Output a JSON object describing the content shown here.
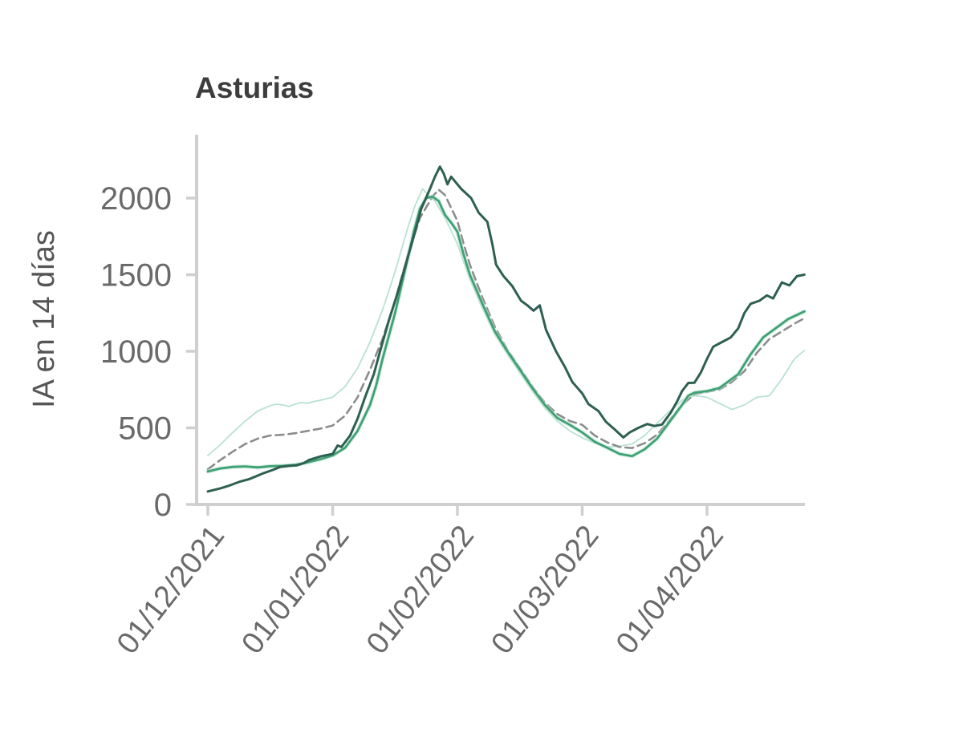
{
  "page": {
    "background": "#ffffff"
  },
  "chart": {
    "title": "Asturias",
    "title_color": "#3d3d3d",
    "axis_color": "#cfcfcf",
    "tick_label_color": "#6a6a6a",
    "axis_label_color": "#555555",
    "y_axis": {
      "label": "IA en 14 días",
      "ticks": [
        0,
        500,
        1000,
        1500,
        2000
      ]
    },
    "x_axis": {
      "ticks": [
        "01/12/2021",
        "01/01/2022",
        "01/02/2022",
        "01/03/2022",
        "01/04/2022"
      ]
    }
  },
  "chart_data": {
    "type": "line",
    "title": "Asturias",
    "xlabel": "",
    "ylabel": "IA en 14 días",
    "x_unit": "months since 01/12/2021 (0=01/12/2021, 1=01/01/2022, 2=01/02/2022, 3=01/03/2022, 4=01/04/2022)",
    "x_tick_positions": [
      0,
      1,
      2,
      3,
      4
    ],
    "x_tick_labels": [
      "01/12/2021",
      "01/01/2022",
      "01/02/2022",
      "01/03/2022",
      "01/04/2022"
    ],
    "xlim": [
      0,
      4.83
    ],
    "ylim": [
      0,
      2413
    ],
    "y_ticks": [
      0,
      500,
      1000,
      1500,
      2000
    ],
    "grid": false,
    "legend": "none",
    "series": [
      {
        "name": "linea-verde-clara",
        "color": "#b9e1d2",
        "style": "solid",
        "width": 1.8,
        "points": [
          [
            0,
            320
          ],
          [
            0.1,
            390
          ],
          [
            0.2,
            470
          ],
          [
            0.3,
            545
          ],
          [
            0.4,
            610
          ],
          [
            0.5,
            645
          ],
          [
            0.55,
            655
          ],
          [
            0.6,
            650
          ],
          [
            0.65,
            640
          ],
          [
            0.7,
            655
          ],
          [
            0.75,
            665
          ],
          [
            0.8,
            660
          ],
          [
            0.85,
            672
          ],
          [
            0.9,
            680
          ],
          [
            1.0,
            700
          ],
          [
            1.1,
            770
          ],
          [
            1.2,
            890
          ],
          [
            1.3,
            1060
          ],
          [
            1.4,
            1270
          ],
          [
            1.5,
            1520
          ],
          [
            1.6,
            1800
          ],
          [
            1.66,
            1950
          ],
          [
            1.72,
            2060
          ],
          [
            1.78,
            2010
          ],
          [
            1.82,
            1980
          ],
          [
            1.9,
            1870
          ],
          [
            2.0,
            1700
          ],
          [
            2.1,
            1470
          ],
          [
            2.2,
            1280
          ],
          [
            2.3,
            1110
          ],
          [
            2.4,
            980
          ],
          [
            2.5,
            860
          ],
          [
            2.6,
            740
          ],
          [
            2.7,
            630
          ],
          [
            2.8,
            545
          ],
          [
            2.9,
            480
          ],
          [
            3.0,
            435
          ],
          [
            3.1,
            400
          ],
          [
            3.2,
            375
          ],
          [
            3.3,
            380
          ],
          [
            3.4,
            395
          ],
          [
            3.5,
            450
          ],
          [
            3.6,
            530
          ],
          [
            3.7,
            610
          ],
          [
            3.8,
            680
          ],
          [
            3.9,
            710
          ],
          [
            4.0,
            700
          ],
          [
            4.1,
            660
          ],
          [
            4.2,
            620
          ],
          [
            4.3,
            650
          ],
          [
            4.4,
            700
          ],
          [
            4.5,
            710
          ],
          [
            4.6,
            820
          ],
          [
            4.7,
            950
          ],
          [
            4.78,
            1005
          ]
        ]
      },
      {
        "name": "linea-gris-discontinua",
        "color": "#8c8c8c",
        "style": "dashed",
        "width": 2.6,
        "points": [
          [
            0,
            230
          ],
          [
            0.1,
            290
          ],
          [
            0.2,
            345
          ],
          [
            0.3,
            395
          ],
          [
            0.4,
            430
          ],
          [
            0.5,
            450
          ],
          [
            0.6,
            455
          ],
          [
            0.7,
            465
          ],
          [
            0.8,
            480
          ],
          [
            0.9,
            495
          ],
          [
            1.0,
            515
          ],
          [
            1.1,
            580
          ],
          [
            1.2,
            700
          ],
          [
            1.3,
            880
          ],
          [
            1.4,
            1080
          ],
          [
            1.5,
            1330
          ],
          [
            1.6,
            1620
          ],
          [
            1.7,
            1870
          ],
          [
            1.8,
            2010
          ],
          [
            1.85,
            2055
          ],
          [
            1.9,
            2020
          ],
          [
            2.0,
            1850
          ],
          [
            2.05,
            1700
          ],
          [
            2.1,
            1565
          ],
          [
            2.2,
            1350
          ],
          [
            2.3,
            1160
          ],
          [
            2.4,
            1010
          ],
          [
            2.5,
            890
          ],
          [
            2.6,
            770
          ],
          [
            2.7,
            665
          ],
          [
            2.8,
            590
          ],
          [
            2.9,
            545
          ],
          [
            3.0,
            520
          ],
          [
            3.1,
            450
          ],
          [
            3.2,
            405
          ],
          [
            3.3,
            375
          ],
          [
            3.4,
            368
          ],
          [
            3.5,
            400
          ],
          [
            3.6,
            455
          ],
          [
            3.7,
            550
          ],
          [
            3.8,
            650
          ],
          [
            3.9,
            720
          ],
          [
            4.0,
            735
          ],
          [
            4.1,
            750
          ],
          [
            4.2,
            800
          ],
          [
            4.3,
            870
          ],
          [
            4.4,
            990
          ],
          [
            4.5,
            1080
          ],
          [
            4.6,
            1130
          ],
          [
            4.7,
            1180
          ],
          [
            4.78,
            1215
          ]
        ]
      },
      {
        "name": "linea-verde-media",
        "color": "#3fa173",
        "style": "solid",
        "width": 2.8,
        "halo_color": "#bfe6d6",
        "points": [
          [
            0,
            215
          ],
          [
            0.1,
            235
          ],
          [
            0.2,
            245
          ],
          [
            0.3,
            248
          ],
          [
            0.4,
            242
          ],
          [
            0.5,
            250
          ],
          [
            0.6,
            252
          ],
          [
            0.7,
            258
          ],
          [
            0.8,
            275
          ],
          [
            0.9,
            295
          ],
          [
            1.0,
            320
          ],
          [
            1.1,
            370
          ],
          [
            1.2,
            480
          ],
          [
            1.3,
            650
          ],
          [
            1.35,
            780
          ],
          [
            1.4,
            950
          ],
          [
            1.5,
            1250
          ],
          [
            1.6,
            1600
          ],
          [
            1.65,
            1780
          ],
          [
            1.7,
            1930
          ],
          [
            1.75,
            2000
          ],
          [
            1.8,
            2010
          ],
          [
            1.85,
            1980
          ],
          [
            1.9,
            1890
          ],
          [
            1.95,
            1840
          ],
          [
            2.0,
            1780
          ],
          [
            2.05,
            1630
          ],
          [
            2.1,
            1500
          ],
          [
            2.2,
            1310
          ],
          [
            2.3,
            1130
          ],
          [
            2.4,
            1000
          ],
          [
            2.5,
            880
          ],
          [
            2.6,
            760
          ],
          [
            2.7,
            650
          ],
          [
            2.8,
            565
          ],
          [
            2.9,
            520
          ],
          [
            3.0,
            470
          ],
          [
            3.1,
            410
          ],
          [
            3.2,
            370
          ],
          [
            3.3,
            330
          ],
          [
            3.4,
            315
          ],
          [
            3.5,
            360
          ],
          [
            3.6,
            430
          ],
          [
            3.7,
            540
          ],
          [
            3.8,
            650
          ],
          [
            3.85,
            710
          ],
          [
            3.9,
            730
          ],
          [
            4.0,
            740
          ],
          [
            4.1,
            760
          ],
          [
            4.15,
            790
          ],
          [
            4.25,
            850
          ],
          [
            4.35,
            980
          ],
          [
            4.45,
            1090
          ],
          [
            4.55,
            1150
          ],
          [
            4.65,
            1210
          ],
          [
            4.78,
            1260
          ]
        ]
      },
      {
        "name": "linea-verde-oscura",
        "color": "#2e6051",
        "style": "solid",
        "width": 3,
        "points": [
          [
            0,
            85
          ],
          [
            0.1,
            105
          ],
          [
            0.16,
            120
          ],
          [
            0.26,
            150
          ],
          [
            0.33,
            165
          ],
          [
            0.39,
            185
          ],
          [
            0.45,
            205
          ],
          [
            0.52,
            225
          ],
          [
            0.58,
            245
          ],
          [
            0.65,
            252
          ],
          [
            0.71,
            255
          ],
          [
            0.77,
            270
          ],
          [
            0.81,
            290
          ],
          [
            0.87,
            305
          ],
          [
            0.91,
            315
          ],
          [
            1.0,
            330
          ],
          [
            1.04,
            385
          ],
          [
            1.07,
            375
          ],
          [
            1.14,
            450
          ],
          [
            1.2,
            560
          ],
          [
            1.26,
            700
          ],
          [
            1.33,
            850
          ],
          [
            1.38,
            1000
          ],
          [
            1.45,
            1200
          ],
          [
            1.52,
            1380
          ],
          [
            1.58,
            1550
          ],
          [
            1.65,
            1750
          ],
          [
            1.71,
            1930
          ],
          [
            1.78,
            2060
          ],
          [
            1.82,
            2140
          ],
          [
            1.86,
            2205
          ],
          [
            1.89,
            2160
          ],
          [
            1.92,
            2090
          ],
          [
            1.95,
            2140
          ],
          [
            1.99,
            2100
          ],
          [
            2.03,
            2060
          ],
          [
            2.11,
            2000
          ],
          [
            2.17,
            1905
          ],
          [
            2.24,
            1845
          ],
          [
            2.28,
            1700
          ],
          [
            2.31,
            1565
          ],
          [
            2.37,
            1490
          ],
          [
            2.44,
            1425
          ],
          [
            2.51,
            1330
          ],
          [
            2.56,
            1300
          ],
          [
            2.61,
            1265
          ],
          [
            2.66,
            1300
          ],
          [
            2.71,
            1140
          ],
          [
            2.79,
            1000
          ],
          [
            2.86,
            900
          ],
          [
            2.92,
            800
          ],
          [
            3.0,
            725
          ],
          [
            3.05,
            655
          ],
          [
            3.13,
            610
          ],
          [
            3.19,
            540
          ],
          [
            3.26,
            490
          ],
          [
            3.33,
            437
          ],
          [
            3.38,
            470
          ],
          [
            3.45,
            500
          ],
          [
            3.52,
            525
          ],
          [
            3.58,
            512
          ],
          [
            3.64,
            522
          ],
          [
            3.71,
            600
          ],
          [
            3.76,
            672
          ],
          [
            3.8,
            740
          ],
          [
            3.85,
            793
          ],
          [
            3.9,
            795
          ],
          [
            3.95,
            860
          ],
          [
            4.0,
            950
          ],
          [
            4.05,
            1030
          ],
          [
            4.12,
            1060
          ],
          [
            4.19,
            1090
          ],
          [
            4.25,
            1150
          ],
          [
            4.3,
            1250
          ],
          [
            4.35,
            1310
          ],
          [
            4.42,
            1330
          ],
          [
            4.48,
            1365
          ],
          [
            4.53,
            1345
          ],
          [
            4.6,
            1450
          ],
          [
            4.66,
            1430
          ],
          [
            4.72,
            1490
          ],
          [
            4.78,
            1500
          ]
        ]
      }
    ]
  }
}
